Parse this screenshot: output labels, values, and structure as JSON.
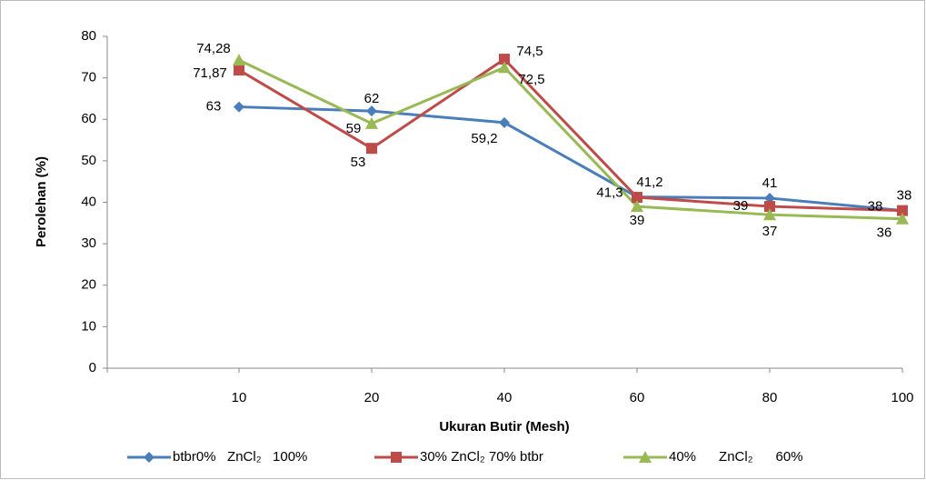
{
  "chart_data": {
    "type": "line",
    "x_label": "Ukuran Butir (Mesh)",
    "y_label": "Perolehan (%)",
    "categories": [
      "10",
      "20",
      "40",
      "60",
      "80",
      "100"
    ],
    "series": [
      {
        "name": "btbr0%   ZnCl₂   100%",
        "color": "#4a7ebb",
        "marker": "diamond",
        "values": [
          63,
          62,
          59.2,
          41.3,
          41,
          38
        ],
        "value_labels": [
          "63",
          "62",
          "59,2",
          "41,3",
          "41",
          "38"
        ]
      },
      {
        "name": "30% ZnCl₂ 70% btbr",
        "color": "#be4b48",
        "marker": "square",
        "values": [
          71.87,
          53,
          74.5,
          41.2,
          39,
          38
        ],
        "value_labels": [
          "71,87",
          "53",
          "74,5",
          "41,2",
          "39",
          "38"
        ]
      },
      {
        "name": "40%      ZnCl₂      60%",
        "color": "#98b954",
        "marker": "triangle",
        "values": [
          74.28,
          59,
          72.5,
          39,
          37,
          36
        ],
        "value_labels": [
          "74,28",
          "59",
          "72,5",
          "39",
          "37",
          "36"
        ]
      }
    ],
    "ylim": [
      0,
      80
    ],
    "yticks": [
      0,
      10,
      20,
      30,
      40,
      50,
      60,
      70,
      80
    ],
    "grid": false
  }
}
